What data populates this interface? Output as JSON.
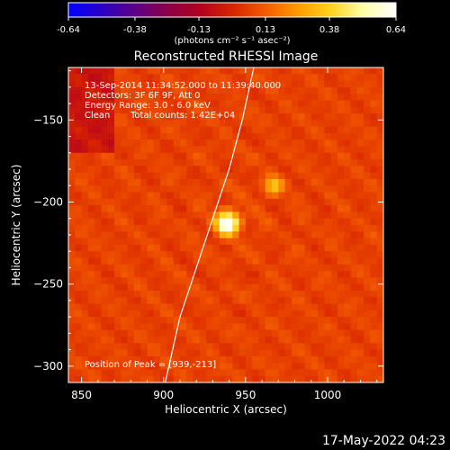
{
  "colorbar": {
    "ticks": [
      "-0.64",
      "-0.38",
      "-0.13",
      "0.13",
      "0.38",
      "0.64"
    ],
    "tick_values": [
      -0.64,
      -0.38,
      -0.13,
      0.13,
      0.38,
      0.64
    ],
    "range": [
      -0.64,
      0.64
    ],
    "units_label": "(photons cm⁻² s⁻¹ asec⁻²)",
    "palette": [
      "#0000ff",
      "#2a00c8",
      "#5a0087",
      "#8a004b",
      "#b3001f",
      "#d82400",
      "#f35a00",
      "#ff9a00",
      "#ffd21c",
      "#ffffaa",
      "#ffffff"
    ]
  },
  "annotations": {
    "line1": "13-Sep-2014 11:34:52.000 to 11:39:40.000",
    "line2": "Detectors: 3F 6F 9F, Att 0",
    "line3": "Energy Range: 3.0 - 6.0 keV",
    "line4_method": "Clean",
    "line4_counts": "Total counts: 1.42E+04",
    "peak": "Position of Peak = [939,-213]"
  },
  "footer_timestamp": "17-May-2022 04:23",
  "chart_data": {
    "type": "heatmap",
    "title": "Reconstructed RHESSI Image",
    "xlabel": "Heliocentric X (arcsec)",
    "ylabel": "Heliocentric Y (arcsec)",
    "xlim": [
      842,
      1034
    ],
    "ylim": [
      -310,
      -118
    ],
    "xticks": [
      850,
      900,
      950,
      1000
    ],
    "yticks": [
      -150,
      -200,
      -250,
      -300
    ],
    "xtick_labels": [
      "850",
      "900",
      "950",
      "1000"
    ],
    "ytick_labels": [
      "−150",
      "−200",
      "−250",
      "−300"
    ],
    "value_range": [
      -0.64,
      0.64
    ],
    "sources": [
      {
        "x": 939,
        "y": -213,
        "peak": 0.64,
        "width": 5
      },
      {
        "x": 967,
        "y": -190,
        "peak": 0.3,
        "width": 4
      }
    ],
    "limb": [
      [
        901,
        -310
      ],
      [
        910,
        -270
      ],
      [
        920,
        -240
      ],
      [
        930,
        -210
      ],
      [
        940,
        -180
      ],
      [
        948,
        -150
      ],
      [
        955,
        -118
      ]
    ],
    "peak_position": [
      939,
      -213
    ]
  }
}
